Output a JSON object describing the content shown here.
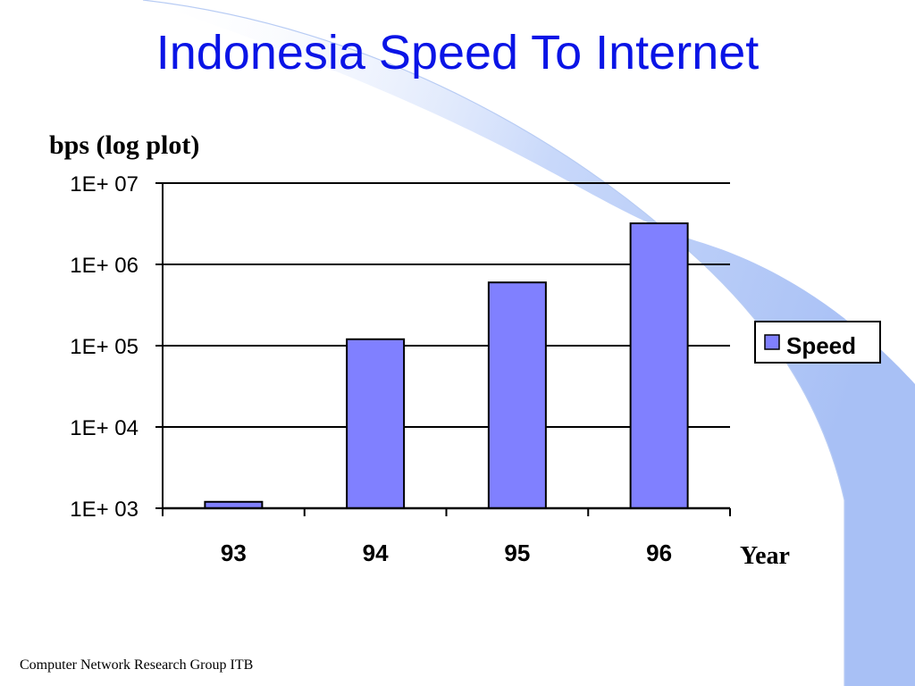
{
  "slide": {
    "title": "Indonesia Speed To Internet",
    "footer": "Computer Network Research Group ITB"
  },
  "colors": {
    "title": "#0a14e6",
    "bar_fill": "#8080ff",
    "decor_swoosh": "#a8c0f5"
  },
  "chart_data": {
    "type": "bar",
    "scale": "log",
    "categories": [
      "93",
      "94",
      "95",
      "96"
    ],
    "series": [
      {
        "name": "Speed",
        "values": [
          1200,
          120000,
          600000,
          3200000
        ]
      }
    ],
    "ylabel": "bps (log plot)",
    "xlabel": "Year",
    "ylim": [
      1000,
      10000000
    ],
    "yticks": [
      1000,
      10000,
      100000,
      1000000,
      10000000
    ],
    "ytick_labels": [
      "1E+ 03",
      "1E+ 04",
      "1E+ 05",
      "1E+ 06",
      "1E+ 07"
    ],
    "grid": true,
    "legend": "right"
  }
}
